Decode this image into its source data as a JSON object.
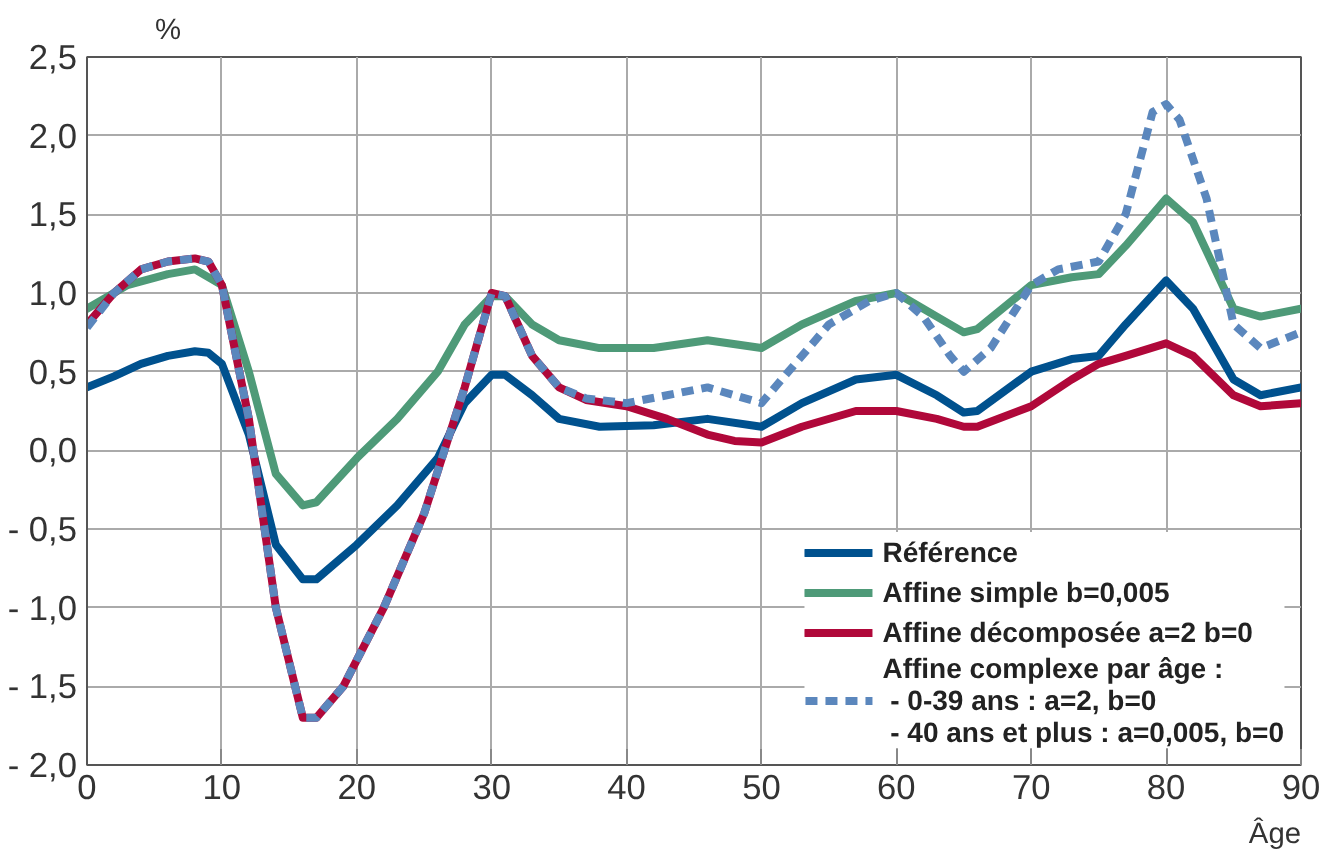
{
  "chart_data": {
    "type": "line",
    "xlabel": "Âge",
    "ylabel": "%",
    "xlim": [
      0,
      90
    ],
    "ylim": [
      -2.0,
      2.5
    ],
    "xticks": [
      0,
      10,
      20,
      30,
      40,
      50,
      60,
      70,
      80,
      90
    ],
    "yticks": [
      {
        "value": -2.0,
        "label": "- 2,0"
      },
      {
        "value": -1.5,
        "label": "- 1,5"
      },
      {
        "value": -1.0,
        "label": "- 1,0"
      },
      {
        "value": -0.5,
        "label": "- 0,5"
      },
      {
        "value": 0,
        "label": "0,0"
      },
      {
        "value": 0.5,
        "label": "0,5"
      },
      {
        "value": 1.0,
        "label": "1,0"
      },
      {
        "value": 1.5,
        "label": "1,5"
      },
      {
        "value": 2.0,
        "label": "2,0"
      },
      {
        "value": 2.5,
        "label": "2,5"
      }
    ],
    "grid": true,
    "legend": "bottom right",
    "marker": "none",
    "series": [
      {
        "name": "Référence",
        "color": "#00518e",
        "line_style": "solid",
        "x": [
          0,
          2,
          4,
          6,
          8,
          9,
          10,
          12,
          14,
          16,
          17,
          20,
          23,
          26,
          28,
          30,
          31,
          33,
          35,
          38,
          42,
          46,
          50,
          53,
          57,
          60,
          63,
          65,
          66,
          70,
          73,
          75,
          77,
          80,
          82,
          85,
          87,
          90
        ],
        "values": [
          0.4,
          0.47,
          0.55,
          0.6,
          0.63,
          0.62,
          0.55,
          0.1,
          -0.6,
          -0.82,
          -0.82,
          -0.6,
          -0.35,
          -0.05,
          0.3,
          0.48,
          0.48,
          0.35,
          0.2,
          0.15,
          0.16,
          0.2,
          0.15,
          0.3,
          0.45,
          0.48,
          0.35,
          0.24,
          0.25,
          0.5,
          0.58,
          0.6,
          0.8,
          1.08,
          0.9,
          0.45,
          0.35,
          0.4
        ]
      },
      {
        "name": "Affine simple b=0,005",
        "color": "#4e9a78",
        "line_style": "solid",
        "x": [
          0,
          3,
          6,
          8,
          10,
          12,
          14,
          16,
          17,
          20,
          23,
          26,
          28,
          30,
          31,
          33,
          35,
          38,
          42,
          46,
          50,
          53,
          57,
          60,
          63,
          65,
          66,
          70,
          73,
          75,
          77,
          80,
          82,
          85,
          87,
          90
        ],
        "values": [
          0.9,
          1.05,
          1.12,
          1.15,
          1.05,
          0.5,
          -0.15,
          -0.35,
          -0.33,
          -0.05,
          0.2,
          0.5,
          0.8,
          0.98,
          0.98,
          0.8,
          0.7,
          0.65,
          0.65,
          0.7,
          0.65,
          0.8,
          0.95,
          1.0,
          0.85,
          0.75,
          0.77,
          1.05,
          1.1,
          1.12,
          1.3,
          1.6,
          1.45,
          0.9,
          0.85,
          0.9
        ]
      },
      {
        "name": "Affine décomposée a=2 b=0",
        "color": "#b0083a",
        "line_style": "solid",
        "x": [
          0,
          2,
          4,
          6,
          8,
          9,
          10,
          12,
          14,
          16,
          17,
          19,
          22,
          25,
          28,
          30,
          31,
          33,
          35,
          37,
          40,
          43,
          46,
          48,
          50,
          53,
          57,
          60,
          63,
          65,
          66,
          70,
          73,
          75,
          77,
          80,
          82,
          85,
          87,
          90
        ],
        "values": [
          0.8,
          1.0,
          1.15,
          1.2,
          1.22,
          1.2,
          1.05,
          0.2,
          -1.0,
          -1.7,
          -1.7,
          -1.5,
          -1.0,
          -0.4,
          0.4,
          1.0,
          0.98,
          0.6,
          0.4,
          0.32,
          0.28,
          0.2,
          0.1,
          0.06,
          0.05,
          0.15,
          0.25,
          0.25,
          0.2,
          0.15,
          0.15,
          0.28,
          0.45,
          0.55,
          0.6,
          0.68,
          0.6,
          0.35,
          0.28,
          0.3
        ]
      },
      {
        "name": "Affine complexe par âge :\n - 0-39 ans : a=2, b=0\n - 40 ans et plus : a=0,005, b=0",
        "color": "#5b87bd",
        "line_style": "dashed",
        "x": [
          0,
          2,
          4,
          6,
          8,
          9,
          10,
          12,
          14,
          16,
          17,
          19,
          22,
          25,
          28,
          30,
          31,
          33,
          35,
          37,
          40,
          43,
          46,
          48,
          50,
          52,
          55,
          58,
          60,
          62,
          64,
          65,
          67,
          70,
          72,
          75,
          77,
          79,
          80,
          81,
          83,
          85,
          87,
          90
        ],
        "values": [
          0.78,
          1.0,
          1.15,
          1.2,
          1.22,
          1.2,
          1.05,
          0.2,
          -1.0,
          -1.7,
          -1.7,
          -1.5,
          -1.0,
          -0.4,
          0.4,
          1.0,
          0.98,
          0.6,
          0.4,
          0.33,
          0.3,
          0.35,
          0.4,
          0.35,
          0.3,
          0.5,
          0.8,
          0.95,
          1.0,
          0.85,
          0.6,
          0.5,
          0.65,
          1.05,
          1.15,
          1.2,
          1.5,
          2.15,
          2.2,
          2.1,
          1.6,
          0.8,
          0.65,
          0.75
        ]
      }
    ]
  }
}
